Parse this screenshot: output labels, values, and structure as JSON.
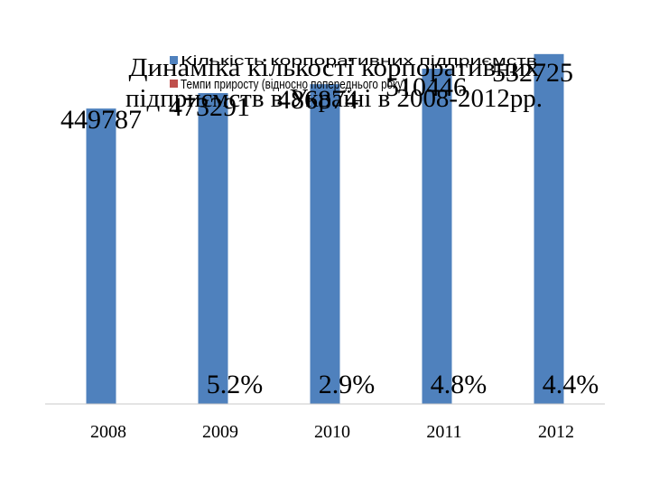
{
  "chart_data": {
    "type": "bar",
    "title": "Динаміка кількості корпоративних підприємств в Україні в 2008-2012рр.",
    "categories": [
      "2008",
      "2009",
      "2010",
      "2011",
      "2012"
    ],
    "series": [
      {
        "name": "Кількість корпоративних підприємств",
        "values": [
          449787,
          473291,
          486874,
          510446,
          532725
        ],
        "value_labels": [
          "449787",
          "473291",
          "486874",
          "510446",
          "532725"
        ],
        "color": "#4f81bd"
      },
      {
        "name": "Темпи приросту (відносно попереднього року)",
        "values": [
          null,
          5.2,
          2.9,
          4.8,
          4.4
        ],
        "value_labels": [
          "",
          "5.2%",
          "2.9%",
          "4.8%",
          "4.4%"
        ],
        "color": "#c0504d"
      }
    ],
    "ylim": [
      0,
      560000
    ],
    "legend_position": "top",
    "grid": false,
    "xlabel": "",
    "ylabel": ""
  }
}
